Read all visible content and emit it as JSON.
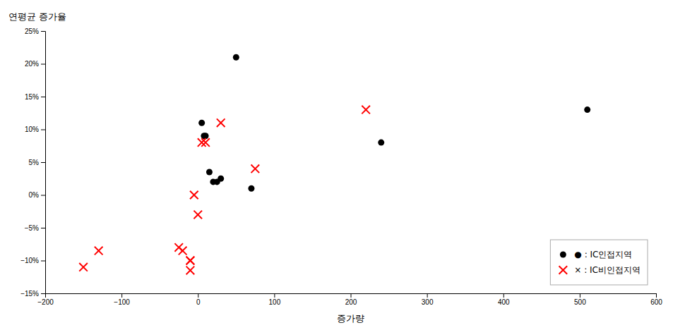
{
  "chart_data": {
    "type": "scatter",
    "xlabel": "증가량",
    "ylabel": "연평균 증가율",
    "series": [
      {
        "name": "● : IC인접지역",
        "color": "#000000",
        "marker": "circle",
        "x": [
          50,
          240,
          510,
          5,
          8,
          10,
          15,
          20,
          25,
          30,
          70
        ],
        "values": [
          0.21,
          0.08,
          0.13,
          0.11,
          0.09,
          0.09,
          0.035,
          0.02,
          0.02,
          0.025,
          0.01
        ]
      },
      {
        "name": "× : IC비인접지역",
        "color": "#ff0000",
        "marker": "x",
        "x": [
          30,
          75,
          220,
          5,
          10,
          0,
          -5,
          -130,
          -150,
          -10,
          -20,
          -25,
          -10,
          -10
        ],
        "values": [
          0.11,
          0.04,
          0.13,
          0.08,
          0.08,
          -0.03,
          0.0,
          -0.085,
          -0.11,
          -0.1,
          -0.085,
          -0.08,
          -0.1,
          -0.115
        ]
      }
    ],
    "xlim": [
      -200,
      600
    ],
    "ylim": [
      -0.15,
      0.25
    ],
    "xticks": [
      {
        "value": -200,
        "label": "−200"
      },
      {
        "value": -100,
        "label": "−100"
      },
      0,
      100,
      200,
      300,
      400,
      500,
      600
    ],
    "yticks": [
      {
        "value": -0.15,
        "label": "−15%"
      },
      {
        "value": -0.1,
        "label": "−10%"
      },
      {
        "value": -0.05,
        "label": "−5%"
      },
      {
        "value": 0,
        "label": "0%"
      },
      {
        "value": 0.05,
        "label": "5%"
      },
      {
        "value": 0.1,
        "label": "10%"
      },
      {
        "value": 0.15,
        "label": "15%"
      },
      {
        "value": 0.2,
        "label": "20%"
      },
      {
        "value": 0.25,
        "label": "25%"
      }
    ],
    "grid": false,
    "legend": "lower right"
  }
}
